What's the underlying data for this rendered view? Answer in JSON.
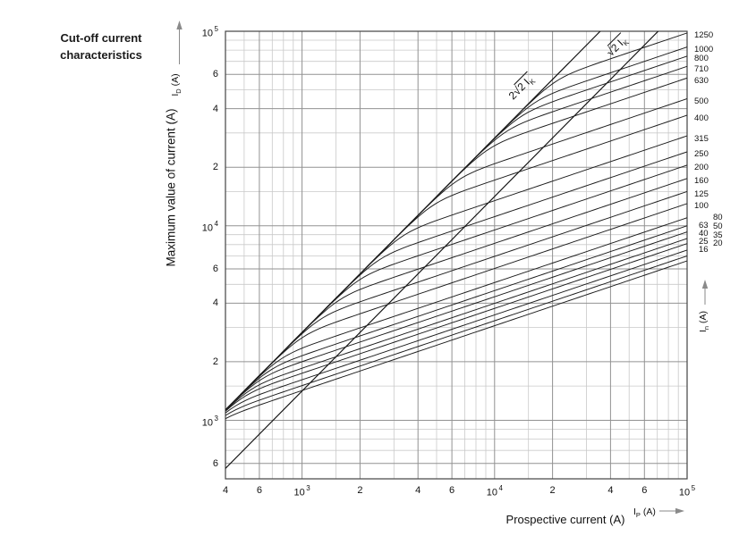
{
  "title": {
    "line1": "Cut-off current",
    "line2": "characteristics"
  },
  "axes": {
    "y_name": "Maximum value of current (A)",
    "y_symbol": {
      "base": "I",
      "sub": "D",
      "unit": "(A)"
    },
    "x_name": "Prospective current (A)",
    "x_symbol": {
      "base": "I",
      "sub": "P",
      "unit": "(A)"
    },
    "right_symbol": {
      "base": "I",
      "sub": "n",
      "unit": "(A)"
    }
  },
  "colors": {
    "curve": "#1c1c1c",
    "reference_line": "#111111",
    "grid_minor": "#c9c9c9",
    "grid_major": "#929292",
    "frame": "#444444",
    "arrow": "#8a8a8a",
    "text": "#111111",
    "background": "#ffffff"
  },
  "chart_data": {
    "type": "line",
    "title": "Cut-off current characteristics",
    "xlabel": "Prospective current (A)",
    "ylabel": "Maximum value of current (A)",
    "xscale": "log",
    "yscale": "log",
    "xlim": [
      400,
      100000
    ],
    "ylim": [
      500,
      100000
    ],
    "grid": true,
    "x_ticks": [
      {
        "v": 400,
        "t": "4"
      },
      {
        "v": 600,
        "t": "6"
      },
      {
        "v": 1000,
        "t": "10^3"
      },
      {
        "v": 2000,
        "t": "2"
      },
      {
        "v": 4000,
        "t": "4"
      },
      {
        "v": 6000,
        "t": "6"
      },
      {
        "v": 10000,
        "t": "10^4"
      },
      {
        "v": 20000,
        "t": "2"
      },
      {
        "v": 40000,
        "t": "4"
      },
      {
        "v": 60000,
        "t": "6"
      },
      {
        "v": 100000,
        "t": "10^5"
      }
    ],
    "y_ticks": [
      {
        "v": 100000,
        "t": "10^5"
      },
      {
        "v": 60000,
        "t": "6"
      },
      {
        "v": 40000,
        "t": "4"
      },
      {
        "v": 20000,
        "t": "2"
      },
      {
        "v": 10000,
        "t": "10^4"
      },
      {
        "v": 6000,
        "t": "6"
      },
      {
        "v": 4000,
        "t": "4"
      },
      {
        "v": 2000,
        "t": "2"
      },
      {
        "v": 1000,
        "t": "10^3"
      },
      {
        "v": 600,
        "t": "6"
      }
    ],
    "grid_multiples": [
      1,
      1.5,
      2,
      3,
      4,
      5,
      6,
      7,
      8,
      9
    ],
    "major_multiples": [
      1,
      2,
      4,
      6
    ],
    "reference_lines": [
      {
        "name": "peak-asymmetrical",
        "factor": 2.8284,
        "label": {
          "prefix": "2",
          "radicand": "2 I",
          "sub": "K"
        }
      },
      {
        "name": "peak-symmetrical",
        "factor": 1.4142,
        "label": {
          "prefix": "",
          "radicand": "2 I",
          "sub": "K"
        }
      }
    ],
    "series": [
      {
        "rating": "1250",
        "cutoff_at_100kA": 98000
      },
      {
        "rating": "1000",
        "cutoff_at_100kA": 83000
      },
      {
        "rating": "800",
        "cutoff_at_100kA": 74500
      },
      {
        "rating": "710",
        "cutoff_at_100kA": 66000
      },
      {
        "rating": "630",
        "cutoff_at_100kA": 57500
      },
      {
        "rating": "500",
        "cutoff_at_100kA": 45000
      },
      {
        "rating": "400",
        "cutoff_at_100kA": 37000
      },
      {
        "rating": "315",
        "cutoff_at_100kA": 29000
      },
      {
        "rating": "250",
        "cutoff_at_100kA": 24000
      },
      {
        "rating": "200",
        "cutoff_at_100kA": 20500
      },
      {
        "rating": "160",
        "cutoff_at_100kA": 17500
      },
      {
        "rating": "125",
        "cutoff_at_100kA": 15000
      },
      {
        "rating": "100",
        "cutoff_at_100kA": 13000
      },
      {
        "rating": "80",
        "cutoff_at_100kA": 11000,
        "label_col": "B",
        "label_row": 0
      },
      {
        "rating": "63",
        "cutoff_at_100kA": 10000,
        "label_col": "A",
        "label_row": 0
      },
      {
        "rating": "50",
        "cutoff_at_100kA": 9300,
        "label_col": "B",
        "label_row": 1
      },
      {
        "rating": "40",
        "cutoff_at_100kA": 8600,
        "label_col": "A",
        "label_row": 1
      },
      {
        "rating": "35",
        "cutoff_at_100kA": 8100,
        "label_col": "B",
        "label_row": 2
      },
      {
        "rating": "25",
        "cutoff_at_100kA": 7500,
        "label_col": "A",
        "label_row": 2
      },
      {
        "rating": "20",
        "cutoff_at_100kA": 7000,
        "label_col": "B",
        "label_row": 3
      },
      {
        "rating": "16",
        "cutoff_at_100kA": 6600,
        "label_col": "A",
        "label_row": 3
      }
    ]
  }
}
